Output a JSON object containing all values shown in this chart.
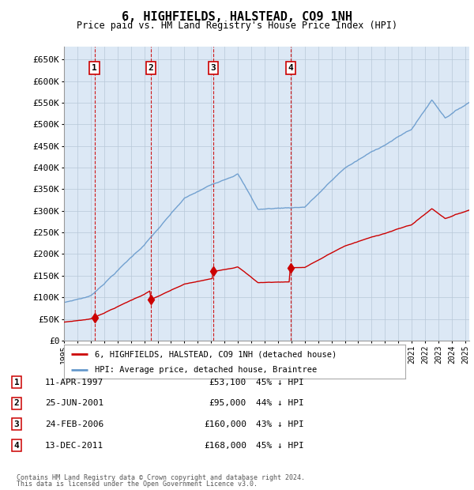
{
  "title": "6, HIGHFIELDS, HALSTEAD, CO9 1NH",
  "subtitle": "Price paid vs. HM Land Registry's House Price Index (HPI)",
  "property_label": "6, HIGHFIELDS, HALSTEAD, CO9 1NH (detached house)",
  "hpi_label": "HPI: Average price, detached house, Braintree",
  "footer1": "Contains HM Land Registry data © Crown copyright and database right 2024.",
  "footer2": "This data is licensed under the Open Government Licence v3.0.",
  "transactions": [
    {
      "num": 1,
      "date": "11-APR-1997",
      "price": 53100,
      "pct": "45% ↓ HPI",
      "year": 1997.28
    },
    {
      "num": 2,
      "date": "25-JUN-2001",
      "price": 95000,
      "pct": "44% ↓ HPI",
      "year": 2001.48
    },
    {
      "num": 3,
      "date": "24-FEB-2006",
      "price": 160000,
      "pct": "43% ↓ HPI",
      "year": 2006.15
    },
    {
      "num": 4,
      "date": "13-DEC-2011",
      "price": 168000,
      "pct": "45% ↓ HPI",
      "year": 2011.95
    }
  ],
  "ylim": [
    0,
    680000
  ],
  "yticks": [
    0,
    50000,
    100000,
    150000,
    200000,
    250000,
    300000,
    350000,
    400000,
    450000,
    500000,
    550000,
    600000,
    650000
  ],
  "xlim_start": 1995.0,
  "xlim_end": 2025.3,
  "property_color": "#cc0000",
  "hpi_color": "#6699cc",
  "background_color": "#dce8f5",
  "plot_bg": "#ffffff",
  "hpi_scale": 0.55
}
